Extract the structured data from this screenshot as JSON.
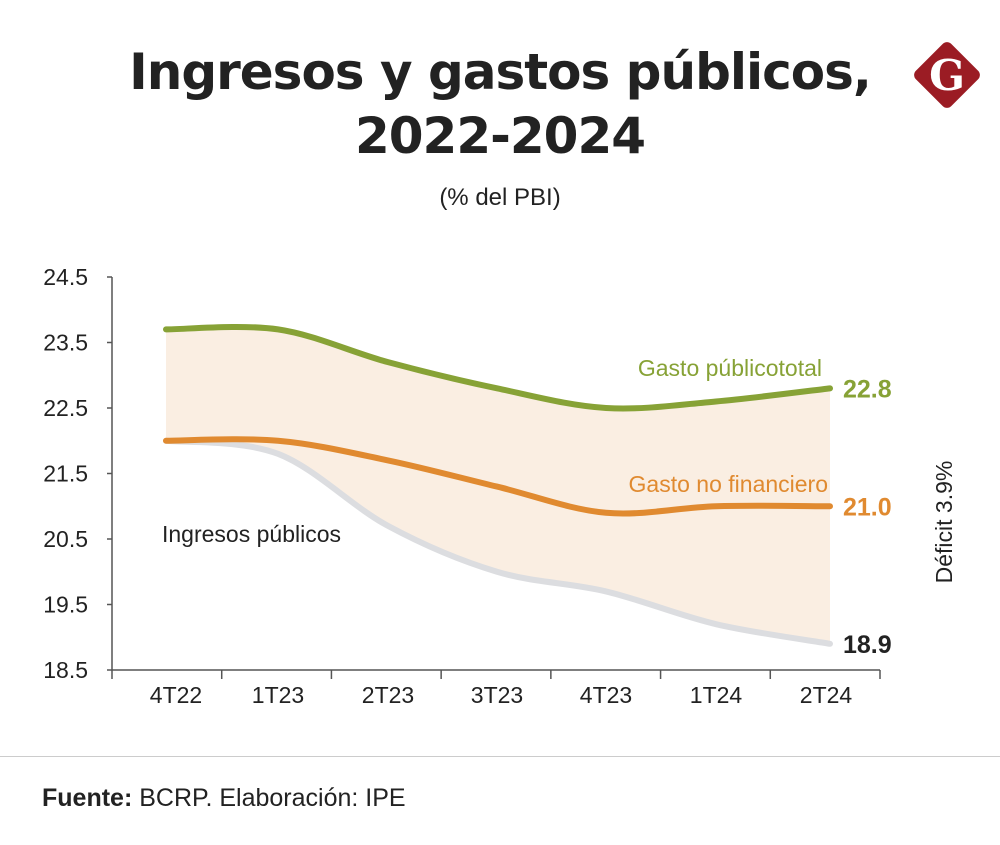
{
  "title_line1": "Ingresos y gastos públicos,",
  "title_line2": "2022-2024",
  "subtitle": "(% del PBI)",
  "logo_letter": "G",
  "source_label": "Fuente:",
  "source_text": " BCRP. Elaboración: IPE",
  "colors": {
    "green": "#87a236",
    "orange": "#e08a30",
    "grey": "#dcdde0",
    "fill": "#faeee2",
    "logo": "#9b1c24"
  },
  "chart_data": {
    "type": "line",
    "categories": [
      "4T22",
      "1T23",
      "2T23",
      "3T23",
      "4T23",
      "1T24",
      "2T24"
    ],
    "ylim": [
      18.5,
      24.5
    ],
    "yticks": [
      "24.5",
      "23.5",
      "22.5",
      "21.5",
      "20.5",
      "19.5",
      "18.5"
    ],
    "ytick_values": [
      24.5,
      23.5,
      22.5,
      21.5,
      20.5,
      19.5,
      18.5
    ],
    "grid": false,
    "series": [
      {
        "name": "Gasto públicototal",
        "values": [
          23.7,
          23.7,
          23.2,
          22.8,
          22.5,
          22.6,
          22.8
        ],
        "end_label": "22.8",
        "color": "#87a236"
      },
      {
        "name": "Gasto no financiero",
        "values": [
          22.0,
          22.0,
          21.7,
          21.3,
          20.9,
          21.0,
          21.0
        ],
        "end_label": "21.0",
        "color": "#e08a30"
      },
      {
        "name": "Ingresos públicos",
        "values": [
          22.0,
          21.8,
          20.7,
          20.0,
          19.7,
          19.2,
          18.9
        ],
        "end_label": "18.9",
        "color": "#dcdde0"
      }
    ],
    "annotation": "Déficit 3.9%"
  }
}
